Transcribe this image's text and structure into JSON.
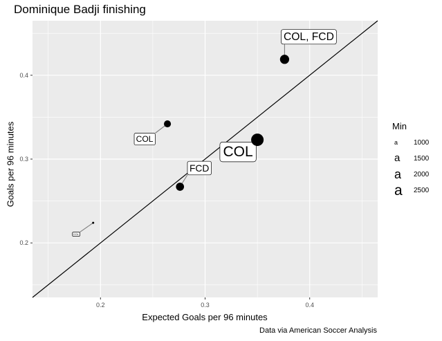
{
  "chart_data": {
    "type": "scatter",
    "title": "Dominique Badji finishing",
    "xlabel": "Expected Goals per 96 minutes",
    "ylabel": "Goals per 96 minutes",
    "caption": "Data via American Soccer Analysis",
    "xlim": [
      0.135,
      0.465
    ],
    "ylim": [
      0.135,
      0.465
    ],
    "x_ticks": [
      0.2,
      0.3,
      0.4
    ],
    "x_tick_labels": [
      "0.2",
      "0.3",
      "0.4"
    ],
    "y_ticks": [
      0.2,
      0.3,
      0.4
    ],
    "y_tick_labels": [
      "0.2",
      "0.3",
      "0.4"
    ],
    "reference_line": "y = x",
    "points": [
      {
        "x": 0.193,
        "y": 0.224,
        "label": "COL",
        "minutes": 600
      },
      {
        "x": 0.264,
        "y": 0.342,
        "label": "COL",
        "minutes": 1500
      },
      {
        "x": 0.276,
        "y": 0.267,
        "label": "FCD",
        "minutes": 1700
      },
      {
        "x": 0.35,
        "y": 0.323,
        "label": "COL",
        "minutes": 2500
      },
      {
        "x": 0.376,
        "y": 0.419,
        "label": "COL, FCD",
        "minutes": 1900
      }
    ],
    "legend": {
      "title": "Min",
      "key_glyph": "a",
      "entries": [
        {
          "label": "1000",
          "minutes": 1000
        },
        {
          "label": "1500",
          "minutes": 1500
        },
        {
          "label": "2000",
          "minutes": 2000
        },
        {
          "label": "2500",
          "minutes": 2500
        }
      ]
    }
  }
}
